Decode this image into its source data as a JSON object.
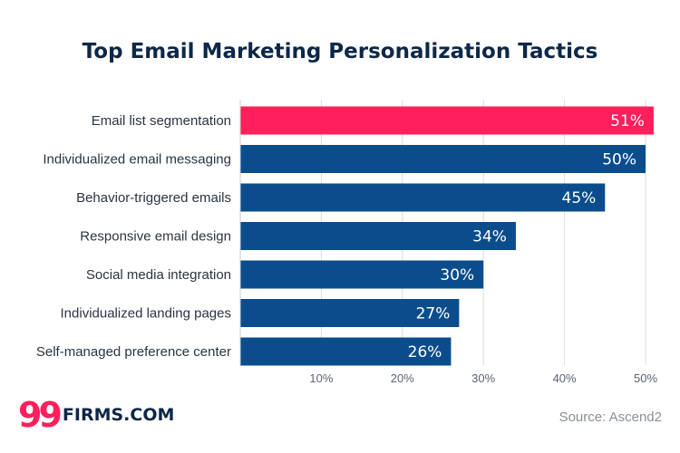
{
  "chart_data": {
    "type": "bar",
    "orientation": "horizontal",
    "title": "Top Email Marketing Personalization Tactics",
    "categories": [
      "Email list segmentation",
      "Individualized email messaging",
      "Behavior-triggered emails",
      "Responsive email design",
      "Social media integration",
      "Individualized landing pages",
      "Self-managed preference center"
    ],
    "values": [
      51,
      50,
      45,
      34,
      30,
      27,
      26
    ],
    "value_labels": [
      "51%",
      "50%",
      "45%",
      "34%",
      "30%",
      "27%",
      "26%"
    ],
    "xlim": [
      0,
      50
    ],
    "x_ticks": [
      10,
      20,
      30,
      40,
      50
    ],
    "x_tick_labels": [
      "10%",
      "20%",
      "30%",
      "40%",
      "50%"
    ],
    "grid": true,
    "colors": {
      "highlight": "#ff1f5a",
      "default": "#0b4d8c"
    },
    "highlight_index": 0
  },
  "footer": {
    "logo_mark": "99",
    "logo_text": "FIRMS.COM",
    "source": "Source: Ascend2"
  }
}
